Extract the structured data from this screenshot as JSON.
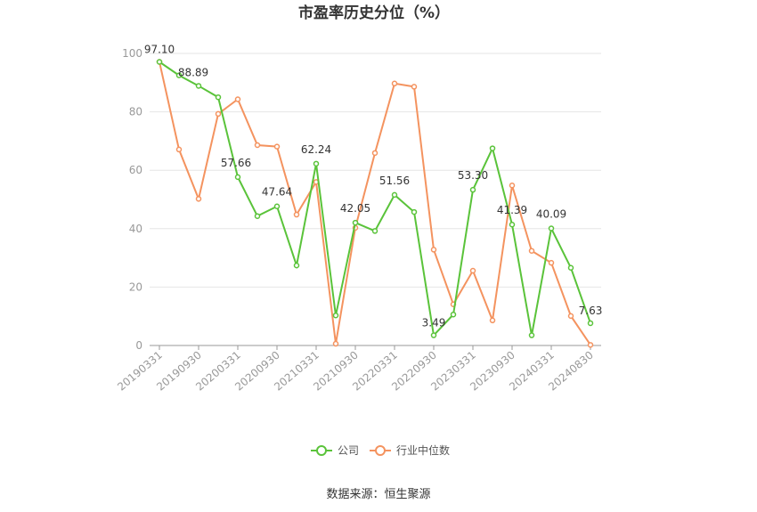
{
  "chart_data": {
    "type": "line",
    "title": "市盈率历史分位（%）",
    "xlabel": "",
    "ylabel": "",
    "ylim": [
      0,
      100
    ],
    "yticks": [
      0,
      20,
      40,
      60,
      80,
      100
    ],
    "grid": true,
    "legend_position": "bottom",
    "x": [
      "20190331",
      "20190630",
      "20190930",
      "20191231",
      "20200331",
      "20200630",
      "20200930",
      "20201231",
      "20210331",
      "20210630",
      "20210930",
      "20211231",
      "20220331",
      "20220630",
      "20220930",
      "20221230",
      "20230331",
      "20230630",
      "20230930",
      "20231229",
      "20240331",
      "20240630",
      "20240830"
    ],
    "x_tick_labels": [
      "20190331",
      "20190930",
      "20200331",
      "20200930",
      "20210331",
      "20210930",
      "20220331",
      "20220930",
      "20230331",
      "20230930",
      "20240331",
      "20240830"
    ],
    "series": [
      {
        "name": "公司",
        "color": "#5ac33a",
        "values": [
          97.1,
          92.5,
          88.89,
          85.0,
          57.66,
          44.3,
          47.64,
          27.4,
          62.24,
          10.3,
          42.05,
          39.2,
          51.56,
          45.7,
          3.49,
          10.6,
          53.3,
          67.5,
          41.39,
          3.5,
          40.09,
          26.6,
          7.63
        ],
        "labels": {
          "0": "97.10",
          "2": "88.89",
          "4": "57.66",
          "6": "47.64",
          "8": "62.24",
          "10": "42.05",
          "12": "51.56",
          "14": "3.49",
          "16": "53.30",
          "18": "41.39",
          "20": "40.09",
          "22": "7.63"
        }
      },
      {
        "name": "行业中位数",
        "color": "#f4935f",
        "values": [
          97.1,
          67.1,
          50.2,
          79.3,
          84.3,
          68.6,
          68.1,
          44.8,
          56.0,
          0.6,
          40.3,
          65.9,
          89.7,
          88.6,
          32.8,
          14.1,
          25.6,
          8.6,
          54.8,
          32.4,
          28.3,
          10.1,
          0.2
        ]
      }
    ]
  },
  "source_text": "数据来源：恒生聚源"
}
